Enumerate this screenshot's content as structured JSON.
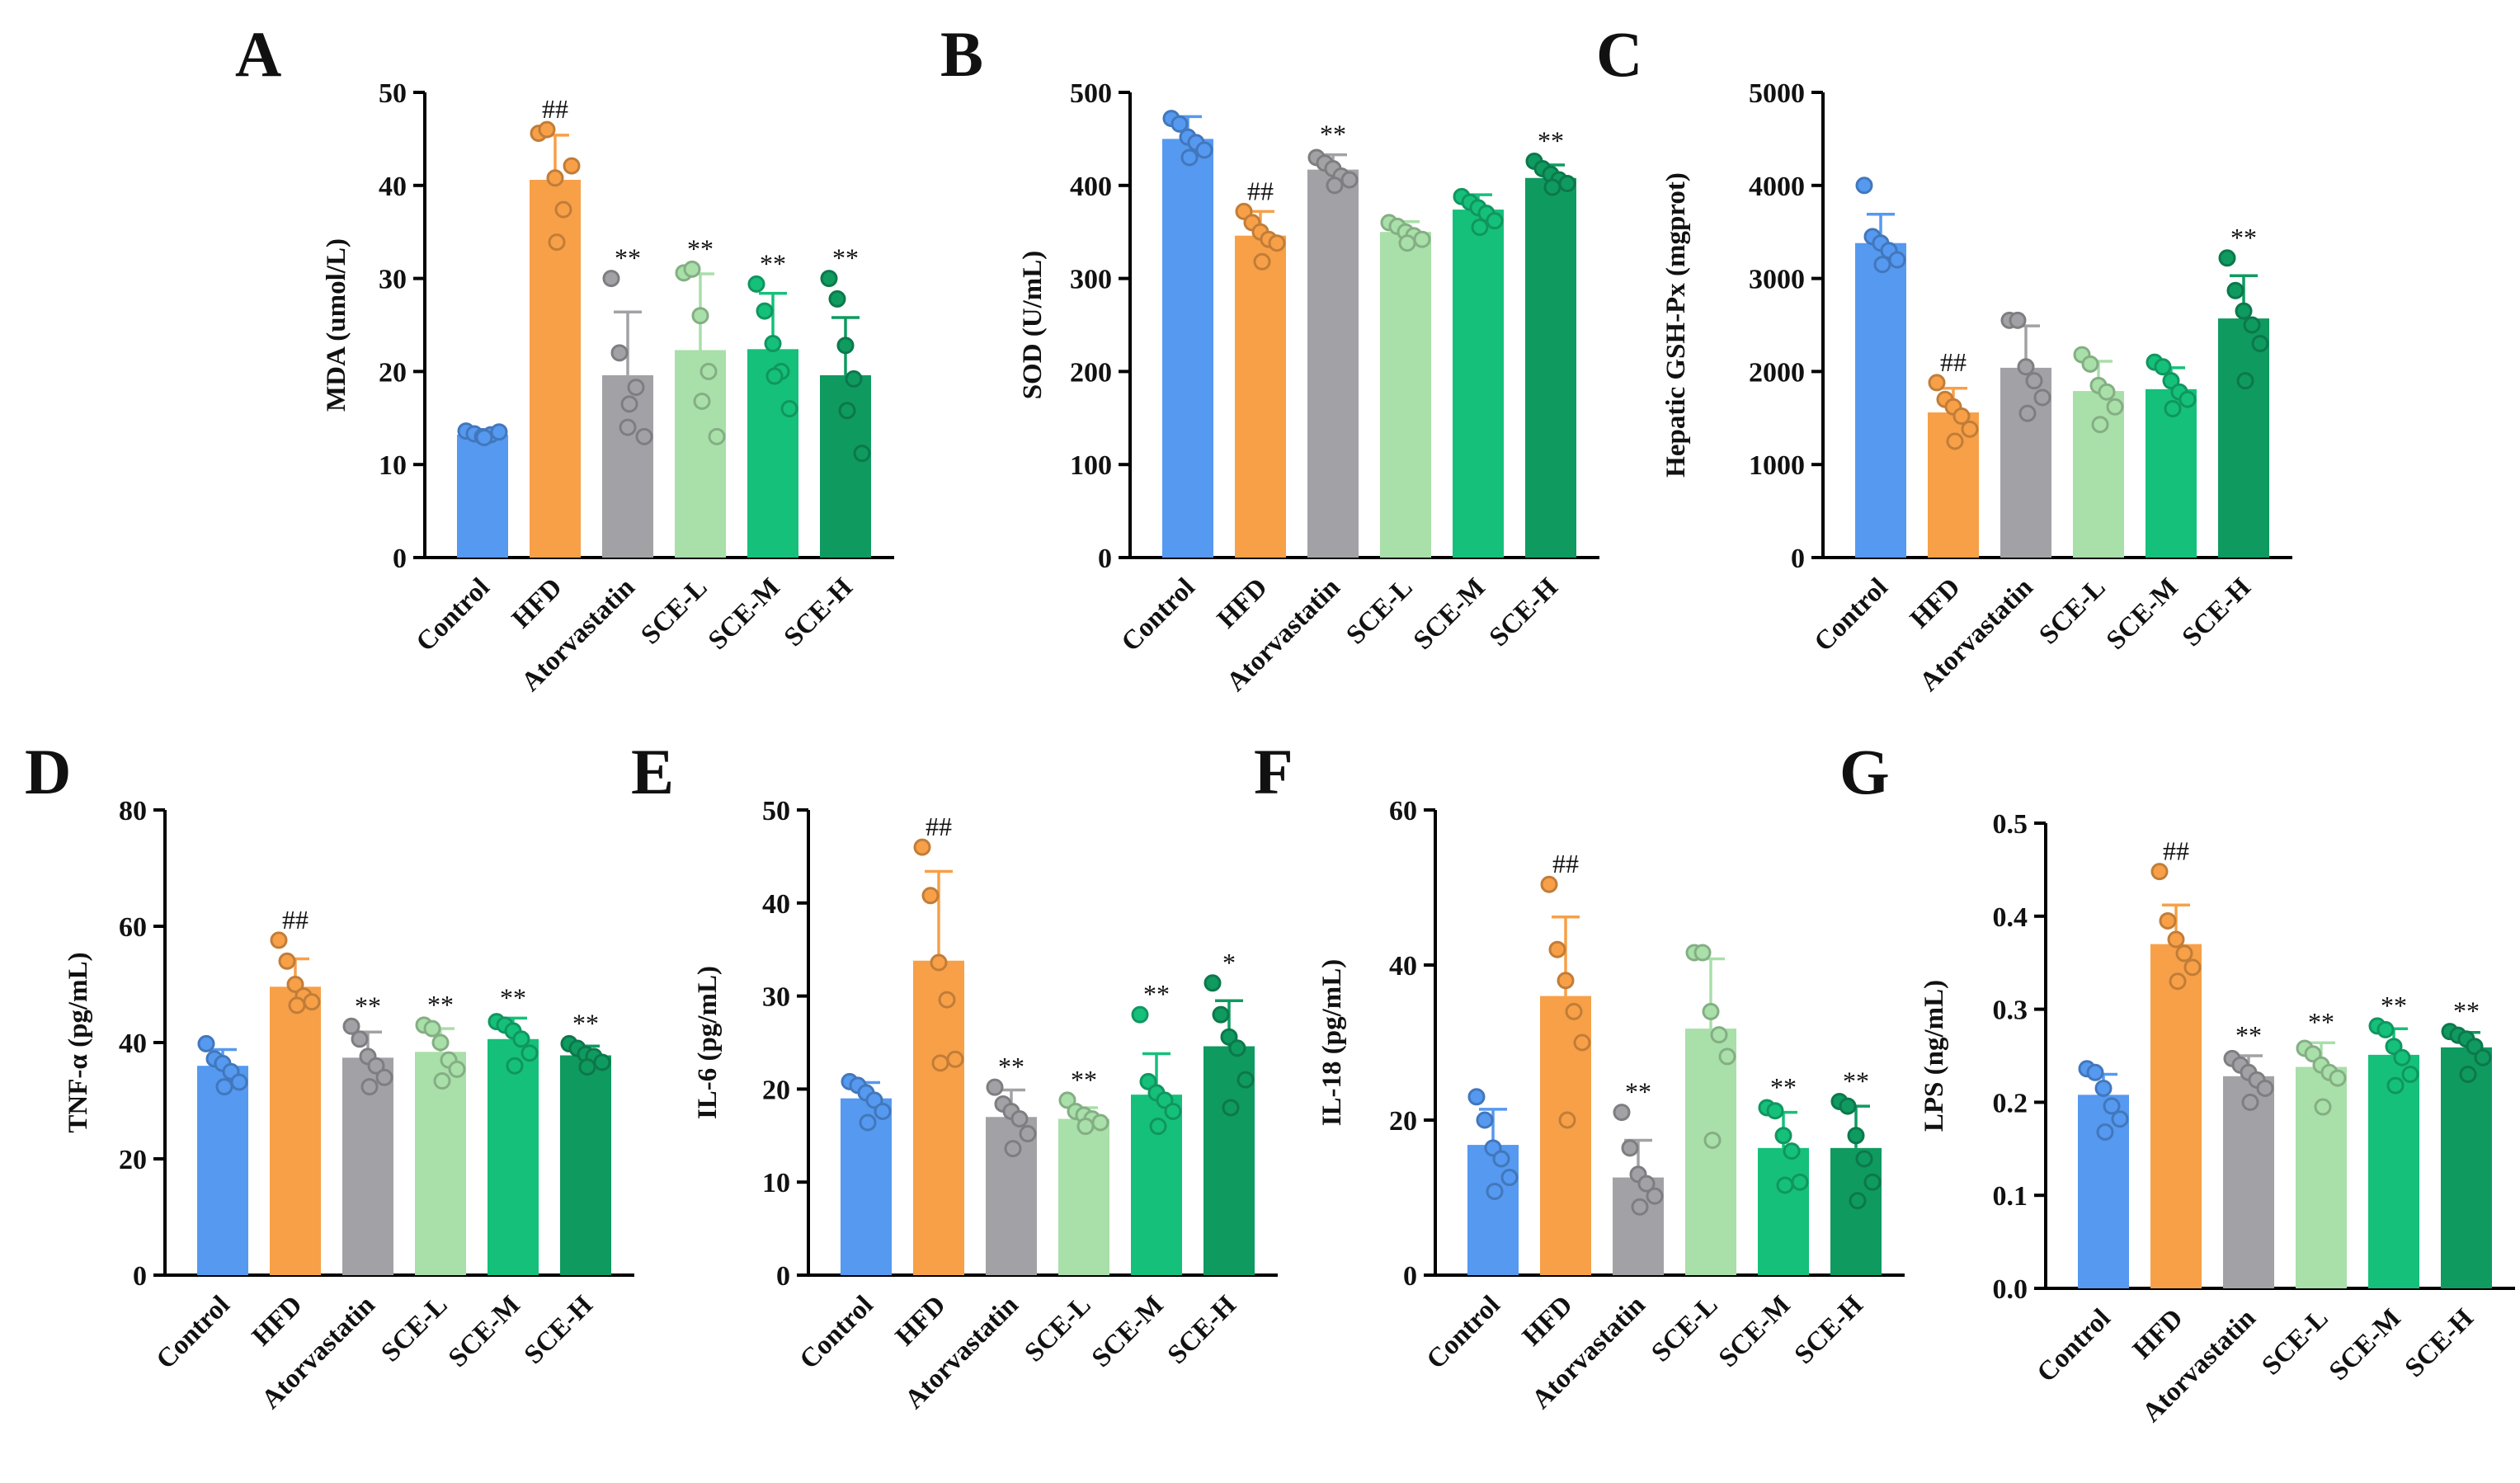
{
  "groups": [
    "Control",
    "HFD",
    "Atorvastatin",
    "SCE-L",
    "SCE-M",
    "SCE-H"
  ],
  "colors": {
    "Control": "#5599f0",
    "HFD": "#f7a048",
    "Atorvastatin": "#a2a2a6",
    "SCE-L": "#a9dfa9",
    "SCE-M": "#15c07a",
    "SCE-H": "#0f9a60"
  },
  "chart_data": [
    {
      "type": "bar",
      "letter": "A",
      "ylabel": "MDA  (umol/L)",
      "ylim": [
        0,
        50
      ],
      "yticks": [
        0,
        10,
        20,
        30,
        40,
        50
      ],
      "tick_labels": [
        "0",
        "10",
        "20",
        "30",
        "40",
        "50"
      ],
      "categories": [
        "Control",
        "HFD",
        "Atorvastatin",
        "SCE-L",
        "SCE-M",
        "SCE-H"
      ],
      "values": [
        13.2,
        40.6,
        19.6,
        22.3,
        22.4,
        19.6
      ],
      "errors": [
        0.5,
        4.8,
        6.8,
        8.2,
        6.0,
        6.2
      ],
      "points": [
        [
          13.6,
          13.3,
          13.0,
          13.2,
          13.5,
          12.9
        ],
        [
          45.6,
          46.0,
          40.8,
          37.4,
          42.1,
          33.9
        ],
        [
          30.0,
          22.0,
          14.0,
          18.3,
          13.0,
          16.5
        ],
        [
          30.6,
          31.0,
          26.0,
          20.0,
          13.0,
          16.8
        ],
        [
          29.4,
          26.5,
          23.0,
          20.0,
          16.0,
          19.5
        ],
        [
          30.0,
          27.8,
          22.8,
          19.2,
          11.2,
          15.8
        ]
      ],
      "significance": [
        "",
        "##",
        "**",
        "**",
        "**",
        "**"
      ]
    },
    {
      "type": "bar",
      "letter": "B",
      "ylabel": "SOD  (U/mL)",
      "ylim": [
        0,
        500
      ],
      "yticks": [
        0,
        100,
        200,
        300,
        400,
        500
      ],
      "tick_labels": [
        "0",
        "100",
        "200",
        "300",
        "400",
        "500"
      ],
      "categories": [
        "Control",
        "HFD",
        "Atorvastatin",
        "SCE-L",
        "SCE-M",
        "SCE-H"
      ],
      "values": [
        450,
        346,
        417,
        350,
        374,
        408
      ],
      "errors": [
        24,
        26,
        16,
        11,
        16,
        14
      ],
      "points": [
        [
          472,
          466,
          452,
          446,
          438,
          430
        ],
        [
          372,
          360,
          350,
          342,
          338,
          318
        ],
        [
          430,
          424,
          418,
          410,
          406,
          400
        ],
        [
          360,
          356,
          350,
          346,
          342,
          338
        ],
        [
          388,
          382,
          376,
          370,
          362,
          355
        ],
        [
          426,
          418,
          412,
          406,
          402,
          398
        ]
      ],
      "significance": [
        "",
        "##",
        "**",
        "",
        "",
        "**"
      ]
    },
    {
      "type": "bar",
      "letter": "C",
      "ylabel": "Hepatic  GSH-Px  (mgprot)",
      "ylim": [
        0,
        5000
      ],
      "yticks": [
        0,
        1000,
        2000,
        3000,
        4000,
        5000
      ],
      "tick_labels": [
        "0",
        "1000",
        "2000",
        "3000",
        "4000",
        "5000"
      ],
      "categories": [
        "Control",
        "HFD",
        "Atorvastatin",
        "SCE-L",
        "SCE-M",
        "SCE-H"
      ],
      "values": [
        3380,
        1560,
        2040,
        1790,
        1810,
        2570
      ],
      "errors": [
        310,
        260,
        450,
        320,
        230,
        460
      ],
      "points": [
        [
          4000,
          3450,
          3380,
          3300,
          3200,
          3150
        ],
        [
          1880,
          1700,
          1620,
          1520,
          1380,
          1250
        ],
        [
          2550,
          2550,
          2050,
          1900,
          1720,
          1550
        ],
        [
          2180,
          2080,
          1850,
          1780,
          1620,
          1430
        ],
        [
          2100,
          2050,
          1900,
          1780,
          1700,
          1600
        ],
        [
          3220,
          2870,
          2650,
          2500,
          2300,
          1900
        ]
      ],
      "significance": [
        "",
        "##",
        "",
        "",
        "",
        "**"
      ]
    },
    {
      "type": "bar",
      "letter": "D",
      "ylabel": "TNF-α  (pg/mL)",
      "ylim": [
        0,
        80
      ],
      "yticks": [
        0,
        20,
        40,
        60,
        80
      ],
      "tick_labels": [
        "0",
        "20",
        "40",
        "60",
        "80"
      ],
      "categories": [
        "Control",
        "HFD",
        "Atorvastatin",
        "SCE-L",
        "SCE-M",
        "SCE-H"
      ],
      "values": [
        36.0,
        49.6,
        37.4,
        38.4,
        40.6,
        37.8
      ],
      "errors": [
        2.8,
        4.8,
        4.4,
        4.0,
        3.6,
        1.6
      ],
      "points": [
        [
          39.8,
          37.2,
          36.4,
          35.0,
          33.2,
          32.4
        ],
        [
          57.6,
          54.0,
          50.0,
          48.0,
          47.0,
          46.4
        ],
        [
          42.8,
          40.6,
          37.6,
          36.0,
          34.0,
          32.4
        ],
        [
          43.0,
          42.4,
          40.0,
          37.0,
          35.4,
          33.4
        ],
        [
          43.6,
          43.0,
          42.0,
          40.6,
          38.2,
          36.0
        ],
        [
          39.8,
          39.0,
          38.0,
          37.6,
          36.6,
          35.8
        ]
      ],
      "significance": [
        "",
        "##",
        "**",
        "**",
        "**",
        "**"
      ]
    },
    {
      "type": "bar",
      "letter": "E",
      "ylabel": "IL-6  (pg/mL)",
      "ylim": [
        0,
        50
      ],
      "yticks": [
        0,
        10,
        20,
        30,
        40,
        50
      ],
      "tick_labels": [
        "0",
        "10",
        "20",
        "30",
        "40",
        "50"
      ],
      "categories": [
        "Control",
        "HFD",
        "Atorvastatin",
        "SCE-L",
        "SCE-M",
        "SCE-H"
      ],
      "values": [
        19.0,
        33.8,
        17.0,
        16.8,
        19.4,
        24.6
      ],
      "errors": [
        1.7,
        9.6,
        2.9,
        1.2,
        4.4,
        4.9
      ],
      "points": [
        [
          20.8,
          20.4,
          19.6,
          18.8,
          17.6,
          16.4
        ],
        [
          46.0,
          40.8,
          33.6,
          29.6,
          23.2,
          22.8
        ],
        [
          20.2,
          18.4,
          17.6,
          16.8,
          15.2,
          13.6
        ],
        [
          18.8,
          17.6,
          17.2,
          16.8,
          16.4,
          16.0
        ],
        [
          28.0,
          20.8,
          19.6,
          18.8,
          17.6,
          16.0
        ],
        [
          31.4,
          28.0,
          25.6,
          24.4,
          21.0,
          18.0
        ]
      ],
      "significance": [
        "",
        "##",
        "**",
        "**",
        "**",
        "*"
      ]
    },
    {
      "type": "bar",
      "letter": "F",
      "ylabel": "IL-18  (pg/mL)",
      "ylim": [
        0,
        60
      ],
      "yticks": [
        0,
        20,
        40,
        60
      ],
      "tick_labels": [
        "0",
        "20",
        "40",
        "60"
      ],
      "categories": [
        "Control",
        "HFD",
        "Atorvastatin",
        "SCE-L",
        "SCE-M",
        "SCE-H"
      ],
      "values": [
        16.8,
        36.0,
        12.6,
        31.8,
        16.4,
        16.4
      ],
      "errors": [
        4.6,
        10.2,
        4.8,
        9.0,
        4.6,
        5.4
      ],
      "points": [
        [
          23.0,
          20.0,
          16.4,
          15.0,
          12.6,
          10.8
        ],
        [
          50.4,
          42.0,
          38.0,
          34.0,
          30.0,
          20.0
        ],
        [
          21.0,
          16.4,
          13.0,
          11.8,
          10.2,
          8.8
        ],
        [
          41.6,
          41.6,
          34.0,
          31.0,
          28.2,
          17.4
        ],
        [
          21.6,
          21.2,
          18.0,
          16.0,
          12.0,
          11.6
        ],
        [
          22.4,
          21.8,
          18.0,
          15.0,
          12.0,
          9.6
        ]
      ],
      "significance": [
        "",
        "##",
        "**",
        "",
        "**",
        "**"
      ]
    },
    {
      "type": "bar",
      "letter": "G",
      "ylabel": "LPS  (ng/mL)",
      "ylim": [
        0,
        0.5
      ],
      "yticks": [
        0,
        0.1,
        0.2,
        0.3,
        0.4,
        0.5
      ],
      "tick_labels": [
        "0.0",
        "0.1",
        "0.2",
        "0.3",
        "0.4",
        "0.5"
      ],
      "categories": [
        "Control",
        "HFD",
        "Atorvastatin",
        "SCE-L",
        "SCE-M",
        "SCE-H"
      ],
      "values": [
        0.208,
        0.37,
        0.228,
        0.238,
        0.251,
        0.259
      ],
      "errors": [
        0.022,
        0.042,
        0.022,
        0.026,
        0.028,
        0.016
      ],
      "points": [
        [
          0.236,
          0.232,
          0.215,
          0.196,
          0.182,
          0.168
        ],
        [
          0.448,
          0.395,
          0.375,
          0.36,
          0.345,
          0.33
        ],
        [
          0.247,
          0.24,
          0.232,
          0.224,
          0.215,
          0.2
        ],
        [
          0.258,
          0.252,
          0.24,
          0.232,
          0.226,
          0.195
        ],
        [
          0.282,
          0.278,
          0.26,
          0.248,
          0.23,
          0.218
        ],
        [
          0.276,
          0.272,
          0.268,
          0.26,
          0.248,
          0.23
        ]
      ],
      "significance": [
        "",
        "##",
        "**",
        "**",
        "**",
        "**"
      ]
    }
  ]
}
